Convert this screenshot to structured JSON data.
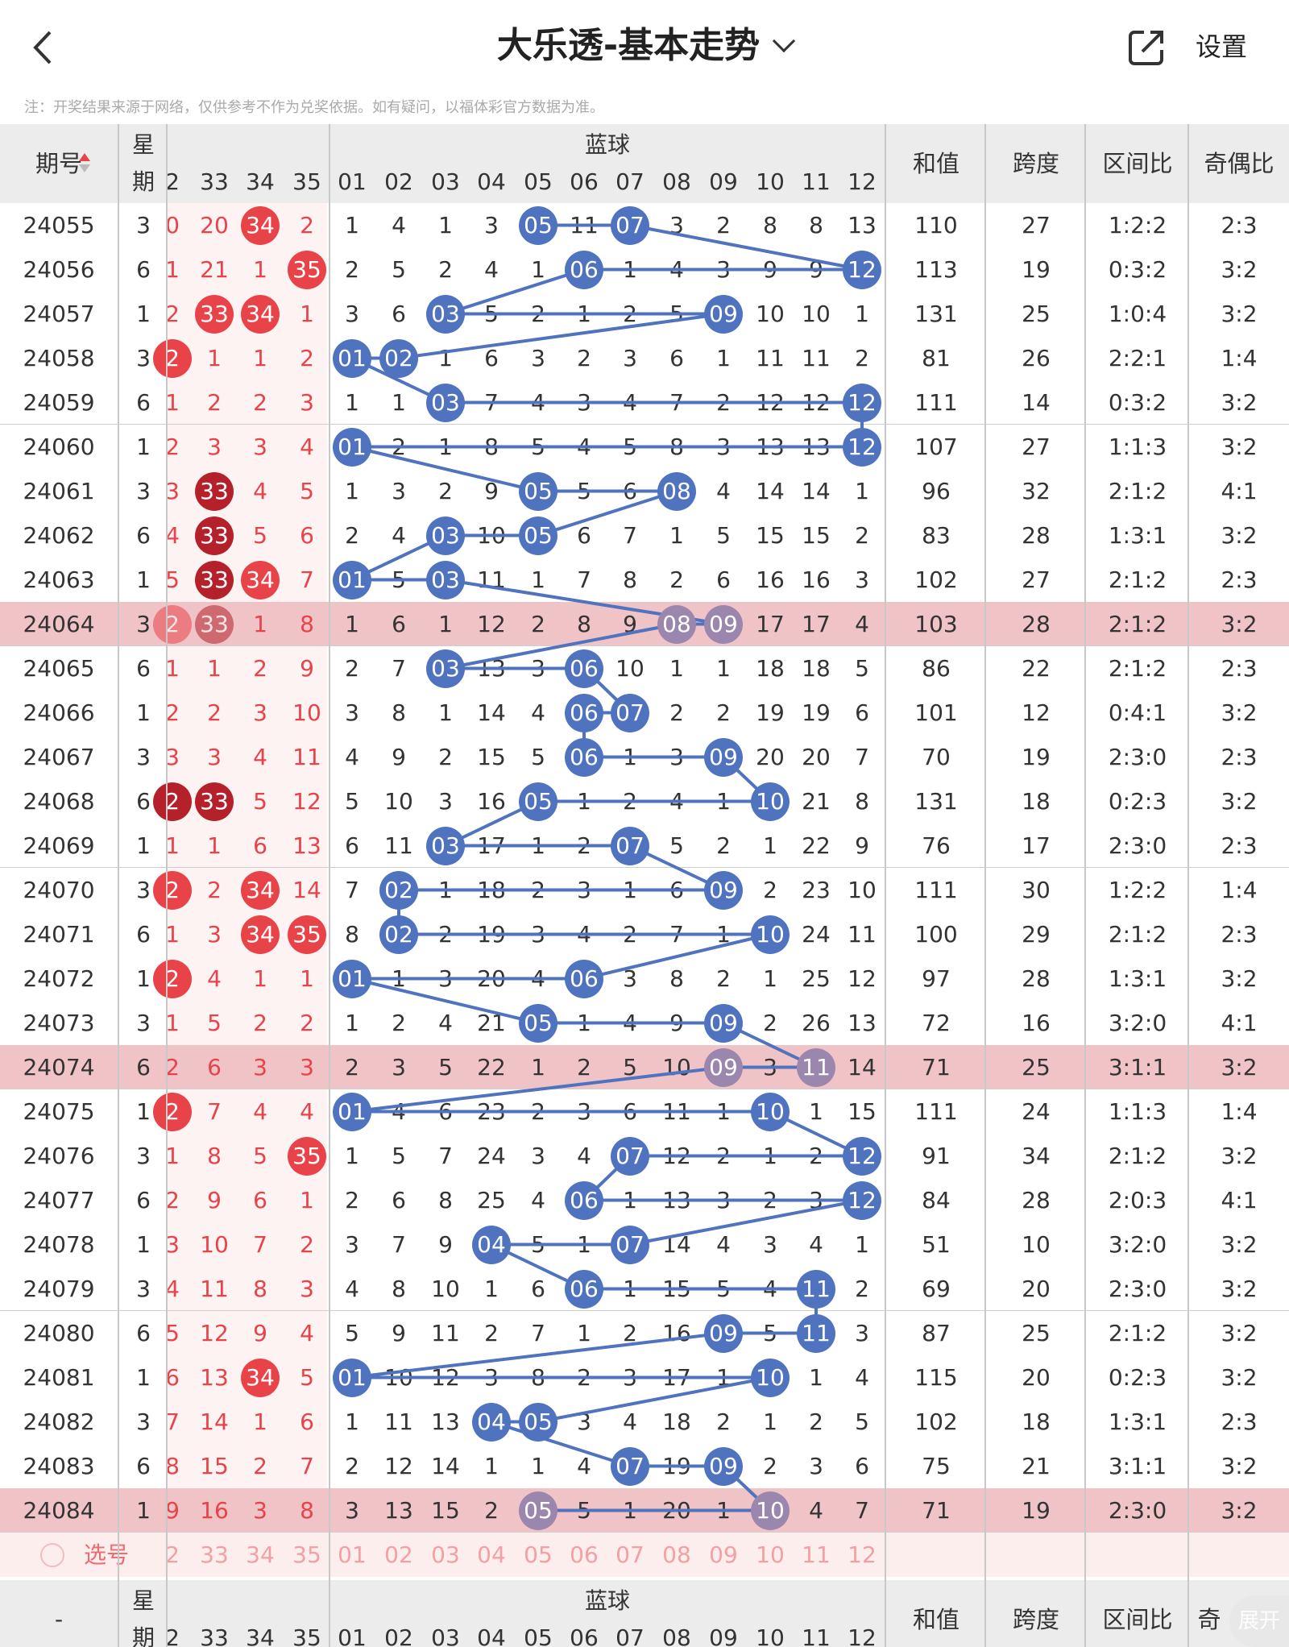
{
  "header": {
    "title": "大乐透-基本走势",
    "settings_label": "设置"
  },
  "notice": "注：开奖结果来源于网络，仅供参考不作为兑奖依据。如有疑问，以福体彩官方数据为准。",
  "table": {
    "col_period": "期号",
    "col_week_1": "星",
    "col_week_2": "期",
    "front_tail_labels": [
      "2",
      "33",
      "34",
      "35"
    ],
    "blue_title": "蓝球",
    "blue_labels": [
      "01",
      "02",
      "03",
      "04",
      "05",
      "06",
      "07",
      "08",
      "09",
      "10",
      "11",
      "12"
    ],
    "col_sum": "和值",
    "col_span": "跨度",
    "col_zone": "区间比",
    "col_oddeven": "奇偶比",
    "pick_label": "选号",
    "pick_front": [
      "2",
      "33",
      "34",
      "35"
    ],
    "pick_blue": [
      "01",
      "02",
      "03",
      "04",
      "05",
      "06",
      "07",
      "08",
      "09",
      "10",
      "11",
      "12"
    ],
    "footer_period": "-",
    "footer_oddeven": "奇",
    "expand_label": "展开",
    "rows": [
      {
        "p": "24055",
        "w": "3",
        "f": [
          "0",
          "20",
          "34",
          "2"
        ],
        "fh": [
          0,
          0,
          1,
          0
        ],
        "b": [
          "1",
          "4",
          "1",
          "3",
          "05",
          "11",
          "07",
          "3",
          "2",
          "8",
          "8",
          "13"
        ],
        "s": "110",
        "sp": "27",
        "z": "1:2:2",
        "o": "2:3"
      },
      {
        "p": "24056",
        "w": "6",
        "f": [
          "1",
          "21",
          "1",
          "35"
        ],
        "fh": [
          0,
          0,
          0,
          1
        ],
        "b": [
          "2",
          "5",
          "2",
          "4",
          "1",
          "06",
          "1",
          "4",
          "3",
          "9",
          "9",
          "12"
        ],
        "s": "113",
        "sp": "19",
        "z": "0:3:2",
        "o": "3:2"
      },
      {
        "p": "24057",
        "w": "1",
        "f": [
          "2",
          "33",
          "34",
          "1"
        ],
        "fh": [
          0,
          1,
          1,
          0
        ],
        "b": [
          "3",
          "6",
          "03",
          "5",
          "2",
          "1",
          "2",
          "5",
          "09",
          "10",
          "10",
          "1"
        ],
        "s": "131",
        "sp": "25",
        "z": "1:0:4",
        "o": "3:2"
      },
      {
        "p": "24058",
        "w": "3",
        "f": [
          "2",
          "1",
          "1",
          "2"
        ],
        "fh": [
          1,
          0,
          0,
          0
        ],
        "b": [
          "01",
          "02",
          "1",
          "6",
          "3",
          "2",
          "3",
          "6",
          "1",
          "11",
          "11",
          "2"
        ],
        "s": "81",
        "sp": "26",
        "z": "2:2:1",
        "o": "1:4"
      },
      {
        "p": "24059",
        "w": "6",
        "f": [
          "1",
          "2",
          "2",
          "3"
        ],
        "fh": [
          0,
          0,
          0,
          0
        ],
        "b": [
          "1",
          "1",
          "03",
          "7",
          "4",
          "3",
          "4",
          "7",
          "2",
          "12",
          "12",
          "12"
        ],
        "s": "111",
        "sp": "14",
        "z": "0:3:2",
        "o": "3:2"
      },
      {
        "p": "24060",
        "w": "1",
        "f": [
          "2",
          "3",
          "3",
          "4"
        ],
        "fh": [
          0,
          0,
          0,
          0
        ],
        "b": [
          "01",
          "2",
          "1",
          "8",
          "5",
          "4",
          "5",
          "8",
          "3",
          "13",
          "13",
          "12"
        ],
        "s": "107",
        "sp": "27",
        "z": "1:1:3",
        "o": "3:2"
      },
      {
        "p": "24061",
        "w": "3",
        "f": [
          "3",
          "33",
          "4",
          "5"
        ],
        "fh": [
          0,
          2,
          0,
          0
        ],
        "b": [
          "1",
          "3",
          "2",
          "9",
          "05",
          "5",
          "6",
          "08",
          "4",
          "14",
          "14",
          "1"
        ],
        "s": "96",
        "sp": "32",
        "z": "2:1:2",
        "o": "4:1"
      },
      {
        "p": "24062",
        "w": "6",
        "f": [
          "4",
          "33",
          "5",
          "6"
        ],
        "fh": [
          0,
          2,
          0,
          0
        ],
        "b": [
          "2",
          "4",
          "03",
          "10",
          "05",
          "6",
          "7",
          "1",
          "5",
          "15",
          "15",
          "2"
        ],
        "s": "83",
        "sp": "28",
        "z": "1:3:1",
        "o": "3:2"
      },
      {
        "p": "24063",
        "w": "1",
        "f": [
          "5",
          "33",
          "34",
          "7"
        ],
        "fh": [
          0,
          2,
          1,
          0
        ],
        "b": [
          "01",
          "5",
          "03",
          "11",
          "1",
          "7",
          "8",
          "2",
          "6",
          "16",
          "16",
          "3"
        ],
        "s": "102",
        "sp": "27",
        "z": "2:1:2",
        "o": "2:3"
      },
      {
        "p": "24064",
        "w": "3",
        "f": [
          "2",
          "33",
          "1",
          "8"
        ],
        "fh": [
          1,
          2,
          0,
          0
        ],
        "b": [
          "1",
          "6",
          "1",
          "12",
          "2",
          "8",
          "9",
          "08",
          "09",
          "17",
          "17",
          "4"
        ],
        "s": "103",
        "sp": "28",
        "z": "2:1:2",
        "o": "3:2",
        "hl": true
      },
      {
        "p": "24065",
        "w": "6",
        "f": [
          "1",
          "1",
          "2",
          "9"
        ],
        "fh": [
          0,
          0,
          0,
          0
        ],
        "b": [
          "2",
          "7",
          "03",
          "13",
          "3",
          "06",
          "10",
          "1",
          "1",
          "18",
          "18",
          "5"
        ],
        "s": "86",
        "sp": "22",
        "z": "2:1:2",
        "o": "2:3"
      },
      {
        "p": "24066",
        "w": "1",
        "f": [
          "2",
          "2",
          "3",
          "10"
        ],
        "fh": [
          0,
          0,
          0,
          0
        ],
        "b": [
          "3",
          "8",
          "1",
          "14",
          "4",
          "06",
          "07",
          "2",
          "2",
          "19",
          "19",
          "6"
        ],
        "s": "101",
        "sp": "12",
        "z": "0:4:1",
        "o": "3:2"
      },
      {
        "p": "24067",
        "w": "3",
        "f": [
          "3",
          "3",
          "4",
          "11"
        ],
        "fh": [
          0,
          0,
          0,
          0
        ],
        "b": [
          "4",
          "9",
          "2",
          "15",
          "5",
          "06",
          "1",
          "3",
          "09",
          "20",
          "20",
          "7"
        ],
        "s": "70",
        "sp": "19",
        "z": "2:3:0",
        "o": "2:3"
      },
      {
        "p": "24068",
        "w": "6",
        "f": [
          "2",
          "33",
          "5",
          "12"
        ],
        "fh": [
          2,
          2,
          0,
          0
        ],
        "b": [
          "5",
          "10",
          "3",
          "16",
          "05",
          "1",
          "2",
          "4",
          "1",
          "10",
          "21",
          "8"
        ],
        "s": "131",
        "sp": "18",
        "z": "0:2:3",
        "o": "3:2"
      },
      {
        "p": "24069",
        "w": "1",
        "f": [
          "1",
          "1",
          "6",
          "13"
        ],
        "fh": [
          0,
          0,
          0,
          0
        ],
        "b": [
          "6",
          "11",
          "03",
          "17",
          "1",
          "2",
          "07",
          "5",
          "2",
          "1",
          "22",
          "9"
        ],
        "s": "76",
        "sp": "17",
        "z": "2:3:0",
        "o": "2:3"
      },
      {
        "p": "24070",
        "w": "3",
        "f": [
          "2",
          "2",
          "34",
          "14"
        ],
        "fh": [
          1,
          0,
          1,
          0
        ],
        "b": [
          "7",
          "02",
          "1",
          "18",
          "2",
          "3",
          "1",
          "6",
          "09",
          "2",
          "23",
          "10"
        ],
        "s": "111",
        "sp": "30",
        "z": "1:2:2",
        "o": "1:4"
      },
      {
        "p": "24071",
        "w": "6",
        "f": [
          "1",
          "3",
          "34",
          "35"
        ],
        "fh": [
          0,
          0,
          1,
          1
        ],
        "b": [
          "8",
          "02",
          "2",
          "19",
          "3",
          "4",
          "2",
          "7",
          "1",
          "10",
          "24",
          "11"
        ],
        "s": "100",
        "sp": "29",
        "z": "2:1:2",
        "o": "2:3"
      },
      {
        "p": "24072",
        "w": "1",
        "f": [
          "2",
          "4",
          "1",
          "1"
        ],
        "fh": [
          1,
          0,
          0,
          0
        ],
        "b": [
          "01",
          "1",
          "3",
          "20",
          "4",
          "06",
          "3",
          "8",
          "2",
          "1",
          "25",
          "12"
        ],
        "s": "97",
        "sp": "28",
        "z": "1:3:1",
        "o": "3:2"
      },
      {
        "p": "24073",
        "w": "3",
        "f": [
          "1",
          "5",
          "2",
          "2"
        ],
        "fh": [
          0,
          0,
          0,
          0
        ],
        "b": [
          "1",
          "2",
          "4",
          "21",
          "05",
          "1",
          "4",
          "9",
          "09",
          "2",
          "26",
          "13"
        ],
        "s": "72",
        "sp": "16",
        "z": "3:2:0",
        "o": "4:1"
      },
      {
        "p": "24074",
        "w": "6",
        "f": [
          "2",
          "6",
          "3",
          "3"
        ],
        "fh": [
          0,
          0,
          0,
          0
        ],
        "b": [
          "2",
          "3",
          "5",
          "22",
          "1",
          "2",
          "5",
          "10",
          "09",
          "3",
          "11",
          "14"
        ],
        "s": "71",
        "sp": "25",
        "z": "3:1:1",
        "o": "3:2",
        "hl": true
      },
      {
        "p": "24075",
        "w": "1",
        "f": [
          "2",
          "7",
          "4",
          "4"
        ],
        "fh": [
          1,
          0,
          0,
          0
        ],
        "b": [
          "01",
          "4",
          "6",
          "23",
          "2",
          "3",
          "6",
          "11",
          "1",
          "10",
          "1",
          "15"
        ],
        "s": "111",
        "sp": "24",
        "z": "1:1:3",
        "o": "1:4"
      },
      {
        "p": "24076",
        "w": "3",
        "f": [
          "1",
          "8",
          "5",
          "35"
        ],
        "fh": [
          0,
          0,
          0,
          1
        ],
        "b": [
          "1",
          "5",
          "7",
          "24",
          "3",
          "4",
          "07",
          "12",
          "2",
          "1",
          "2",
          "12"
        ],
        "s": "91",
        "sp": "34",
        "z": "2:1:2",
        "o": "3:2"
      },
      {
        "p": "24077",
        "w": "6",
        "f": [
          "2",
          "9",
          "6",
          "1"
        ],
        "fh": [
          0,
          0,
          0,
          0
        ],
        "b": [
          "2",
          "6",
          "8",
          "25",
          "4",
          "06",
          "1",
          "13",
          "3",
          "2",
          "3",
          "12"
        ],
        "s": "84",
        "sp": "28",
        "z": "2:0:3",
        "o": "4:1"
      },
      {
        "p": "24078",
        "w": "1",
        "f": [
          "3",
          "10",
          "7",
          "2"
        ],
        "fh": [
          0,
          0,
          0,
          0
        ],
        "b": [
          "3",
          "7",
          "9",
          "04",
          "5",
          "1",
          "07",
          "14",
          "4",
          "3",
          "4",
          "1"
        ],
        "s": "51",
        "sp": "10",
        "z": "3:2:0",
        "o": "3:2"
      },
      {
        "p": "24079",
        "w": "3",
        "f": [
          "4",
          "11",
          "8",
          "3"
        ],
        "fh": [
          0,
          0,
          0,
          0
        ],
        "b": [
          "4",
          "8",
          "10",
          "1",
          "6",
          "06",
          "1",
          "15",
          "5",
          "4",
          "11",
          "2"
        ],
        "s": "69",
        "sp": "20",
        "z": "2:3:0",
        "o": "3:2"
      },
      {
        "p": "24080",
        "w": "6",
        "f": [
          "5",
          "12",
          "9",
          "4"
        ],
        "fh": [
          0,
          0,
          0,
          0
        ],
        "b": [
          "5",
          "9",
          "11",
          "2",
          "7",
          "1",
          "2",
          "16",
          "09",
          "5",
          "11",
          "3"
        ],
        "s": "87",
        "sp": "25",
        "z": "2:1:2",
        "o": "3:2"
      },
      {
        "p": "24081",
        "w": "1",
        "f": [
          "6",
          "13",
          "34",
          "5"
        ],
        "fh": [
          0,
          0,
          1,
          0
        ],
        "b": [
          "01",
          "10",
          "12",
          "3",
          "8",
          "2",
          "3",
          "17",
          "1",
          "10",
          "1",
          "4"
        ],
        "s": "115",
        "sp": "20",
        "z": "0:2:3",
        "o": "3:2"
      },
      {
        "p": "24082",
        "w": "3",
        "f": [
          "7",
          "14",
          "1",
          "6"
        ],
        "fh": [
          0,
          0,
          0,
          0
        ],
        "b": [
          "1",
          "11",
          "13",
          "04",
          "05",
          "3",
          "4",
          "18",
          "2",
          "1",
          "2",
          "5"
        ],
        "s": "102",
        "sp": "18",
        "z": "1:3:1",
        "o": "2:3"
      },
      {
        "p": "24083",
        "w": "6",
        "f": [
          "8",
          "15",
          "2",
          "7"
        ],
        "fh": [
          0,
          0,
          0,
          0
        ],
        "b": [
          "2",
          "12",
          "14",
          "1",
          "1",
          "4",
          "07",
          "19",
          "09",
          "2",
          "3",
          "6"
        ],
        "s": "75",
        "sp": "21",
        "z": "3:1:1",
        "o": "3:2"
      },
      {
        "p": "24084",
        "w": "1",
        "f": [
          "9",
          "16",
          "3",
          "8"
        ],
        "fh": [
          0,
          0,
          0,
          0
        ],
        "b": [
          "3",
          "13",
          "15",
          "2",
          "05",
          "5",
          "1",
          "20",
          "1",
          "10",
          "4",
          "7"
        ],
        "s": "71",
        "sp": "19",
        "z": "2:3:0",
        "o": "3:2",
        "hl": true
      }
    ],
    "hit_pairs": [
      [
        4,
        6
      ],
      [
        5,
        11
      ],
      [
        2,
        8
      ],
      [
        0,
        1
      ],
      [
        2,
        11
      ],
      [
        0,
        11
      ],
      [
        4,
        7
      ],
      [
        2,
        4
      ],
      [
        0,
        2
      ],
      [
        7,
        8
      ],
      [
        2,
        5
      ],
      [
        5,
        6
      ],
      [
        5,
        8
      ],
      [
        4,
        9
      ],
      [
        2,
        6
      ],
      [
        1,
        8
      ],
      [
        1,
        9
      ],
      [
        0,
        5
      ],
      [
        4,
        8
      ],
      [
        8,
        10
      ],
      [
        0,
        9
      ],
      [
        6,
        11
      ],
      [
        5,
        11
      ],
      [
        3,
        6
      ],
      [
        5,
        10
      ],
      [
        8,
        10
      ],
      [
        0,
        9
      ],
      [
        3,
        4
      ],
      [
        6,
        8
      ],
      [
        4,
        9
      ]
    ]
  },
  "colors": {
    "red": "#e84349",
    "dark_red": "#b5212a",
    "blue": "#4f73bf",
    "line": "#4f73bf",
    "highlight": "#f0c3c7",
    "header_bg": "#ececec",
    "stripe": "#f6f6f6"
  }
}
